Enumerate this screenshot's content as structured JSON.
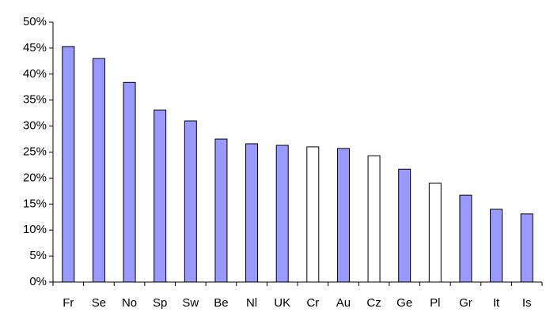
{
  "chart_data": {
    "type": "bar",
    "categories": [
      "Fr",
      "Se",
      "No",
      "Sp",
      "Sw",
      "Be",
      "Nl",
      "UK",
      "Cr",
      "Au",
      "Cz",
      "Ge",
      "Pl",
      "Gr",
      "It",
      "Is"
    ],
    "values": [
      45.3,
      43.0,
      38.4,
      33.1,
      31.0,
      27.5,
      26.6,
      26.3,
      26.0,
      25.7,
      24.3,
      21.7,
      19.0,
      16.7,
      14.0,
      13.1
    ],
    "colors": [
      "#9999ff",
      "#9999ff",
      "#9999ff",
      "#9999ff",
      "#9999ff",
      "#9999ff",
      "#9999ff",
      "#9999ff",
      "#ffffff",
      "#9999ff",
      "#ffffff",
      "#9999ff",
      "#ffffff",
      "#9999ff",
      "#9999ff",
      "#9999ff"
    ],
    "ylim": [
      0,
      50
    ],
    "yticks": [
      {
        "value": 0,
        "label": "0%"
      },
      {
        "value": 5,
        "label": "5%"
      },
      {
        "value": 10,
        "label": "10%"
      },
      {
        "value": 15,
        "label": "15%"
      },
      {
        "value": 20,
        "label": "20%"
      },
      {
        "value": 25,
        "label": "25%"
      },
      {
        "value": 30,
        "label": "30%"
      },
      {
        "value": 35,
        "label": "35%"
      },
      {
        "value": 40,
        "label": "40%"
      },
      {
        "value": 45,
        "label": "45%"
      },
      {
        "value": 50,
        "label": "50%"
      }
    ],
    "grid": false
  }
}
